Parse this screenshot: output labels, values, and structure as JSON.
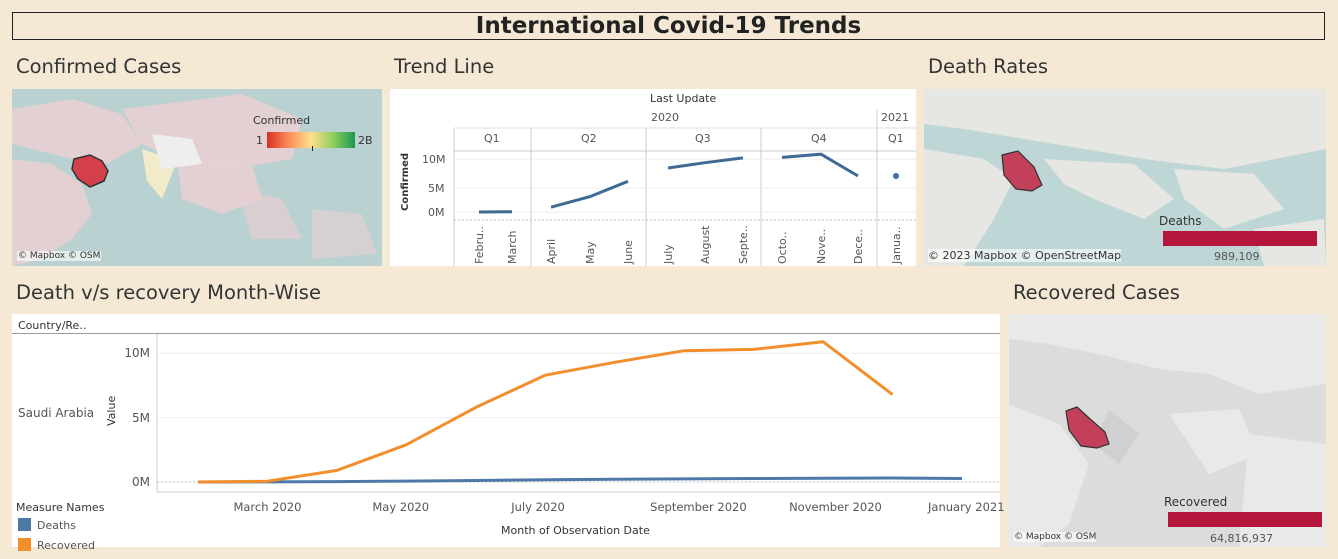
{
  "page_title": "International Covid-19 Trends",
  "sections": {
    "confirmed": "Confirmed Cases",
    "trend": "Trend Line",
    "death_rates": "Death Rates",
    "death_vs_recovery": "Death v/s recovery Month-Wise",
    "recovered": "Recovered Cases"
  },
  "confirmed_map": {
    "legend_title": "Confirmed",
    "legend_min": "1",
    "legend_max": "2B",
    "attribution": "© Mapbox © OSM",
    "colors": {
      "low": "#d73027",
      "mid": "#fee08b",
      "high": "#1a9850"
    }
  },
  "death_map": {
    "attribution": "© 2023 Mapbox © OpenStreetMap",
    "legend_title": "Deaths",
    "legend_value": "989,109",
    "bar_color": "#b5173c"
  },
  "recovered_map": {
    "attribution": "© Mapbox © OSM",
    "legend_title": "Recovered",
    "legend_value": "64,816,937",
    "bar_color": "#b5173c"
  },
  "trend_chart": {
    "header": "Last Update",
    "years": [
      "2020",
      "2021"
    ],
    "quarters": [
      "Q1",
      "Q2",
      "Q3",
      "Q4",
      "Q1"
    ],
    "ylabel": "Confirmed",
    "yticks": [
      "10M",
      "5M",
      "0M"
    ],
    "months": [
      "Febru..",
      "March",
      "April",
      "May",
      "June",
      "July",
      "August",
      "Septe..",
      "Octo..",
      "Nove..",
      "Dece..",
      "Janua.."
    ]
  },
  "chart_data": {
    "type": "line",
    "title": "Death v/s recovery Month-Wise",
    "row_header": "Country/Re..",
    "row_label": "Saudi Arabia",
    "xlabel": "Month of Observation Date",
    "ylabel": "Value",
    "ylim": [
      0,
      11500000
    ],
    "yticks": [
      "10M",
      "5M",
      "0M"
    ],
    "xticks": [
      "March 2020",
      "May 2020",
      "July 2020",
      "September 2020",
      "November 2020",
      "January 2021"
    ],
    "x": [
      "2020-02",
      "2020-03",
      "2020-04",
      "2020-05",
      "2020-06",
      "2020-07",
      "2020-08",
      "2020-09",
      "2020-10",
      "2020-11",
      "2020-12",
      "2021-01"
    ],
    "legend_title": "Measure Names",
    "legend_position": "bottom-left",
    "series": [
      {
        "name": "Deaths",
        "color": "#4e79a7",
        "values": [
          0,
          10000,
          30000,
          70000,
          120000,
          180000,
          220000,
          240000,
          270000,
          290000,
          310000,
          270000
        ]
      },
      {
        "name": "Recovered",
        "color": "#f28e2b",
        "values": [
          0,
          60000,
          900000,
          2900000,
          5800000,
          8300000,
          9300000,
          10200000,
          10300000,
          10900000,
          6800000,
          null
        ]
      }
    ]
  }
}
